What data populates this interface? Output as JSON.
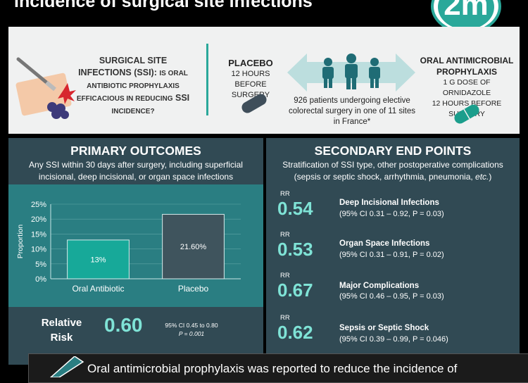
{
  "header": {
    "title": "incidence of surgical site infections",
    "logo_text": "2m"
  },
  "study": {
    "question_part1": "SURGICAL SITE INFECTIONS (SSI):",
    "question_part2": "IS ORAL ANTIBIOTIC PROPHYLAXIS EFFICACIOUS IN REDUCING",
    "question_part3": "SSI",
    "question_part4": "INCIDENCE?",
    "placebo_title": "PLACEBO",
    "placebo_line1": "12 HOURS BEFORE",
    "placebo_line2": "SURGERY",
    "oral_title": "ORAL ANTIMICROBIAL PROPHYLAXIS",
    "oral_line1": "1 G DOSE OF ORNIDAZOLE",
    "oral_line2": "12 HOURS BEFORE SURGERY",
    "patients_text": "926 patients undergoing elective colorectal surgery in one of 11 sites in France*"
  },
  "primary": {
    "title": "PRIMARY OUTCOMES",
    "subtitle": "Any SSI within 30 days after surgery, including superficial incisional, deep incisional, or organ space infections",
    "rr_label": "Relative Risk",
    "rr_value": "0.60",
    "rr_ci": "95% CI 0.45 to 0.80",
    "rr_p": "P = 0.001"
  },
  "chart_data": {
    "type": "bar",
    "categories": [
      "Oral Antibiotic",
      "Placebo"
    ],
    "values": [
      13,
      21.6
    ],
    "data_labels": [
      "13%",
      "21.60%"
    ],
    "ylabel": "Proportion",
    "yticks": [
      "0%",
      "5%",
      "10%",
      "15%",
      "20%",
      "25%"
    ],
    "ylim": [
      0,
      25
    ],
    "colors": [
      "#17a999",
      "#3f545d"
    ]
  },
  "secondary": {
    "title": "SECONDARY END POINTS",
    "subtitle_a": "Stratification of SSI type, other postoperative complications",
    "subtitle_b": "(sepsis or septic shock, arrhythmia, pneumonia,",
    "subtitle_etc": "etc.",
    "subtitle_c": ")",
    "items": [
      {
        "rr_label": "RR",
        "value": "0.54",
        "name": "Deep Incisional Infections",
        "ci": "(95% CI 0.31 – 0.92, P = 0.03)"
      },
      {
        "rr_label": "RR",
        "value": "0.53",
        "name": "Organ Space Infections",
        "ci": "(95% CI 0.31 – 0.91, P = 0.02)"
      },
      {
        "rr_label": "RR",
        "value": "0.67",
        "name": "Major Complications",
        "ci": "(95% CI 0.46 – 0.95, P = 0.03)"
      },
      {
        "rr_label": "RR",
        "value": "0.62",
        "name": "Sepsis or Septic Shock",
        "ci": "(95% CI 0.39 – 0.99, P = 0.046)"
      }
    ]
  },
  "conclusion": {
    "text": "Oral antimicrobial prophylaxis was reported to reduce the incidence of"
  },
  "colors": {
    "accent": "#2aa89a",
    "panel": "#314a54",
    "chart_bg": "#2a7e82",
    "value": "#7fe3d6"
  }
}
